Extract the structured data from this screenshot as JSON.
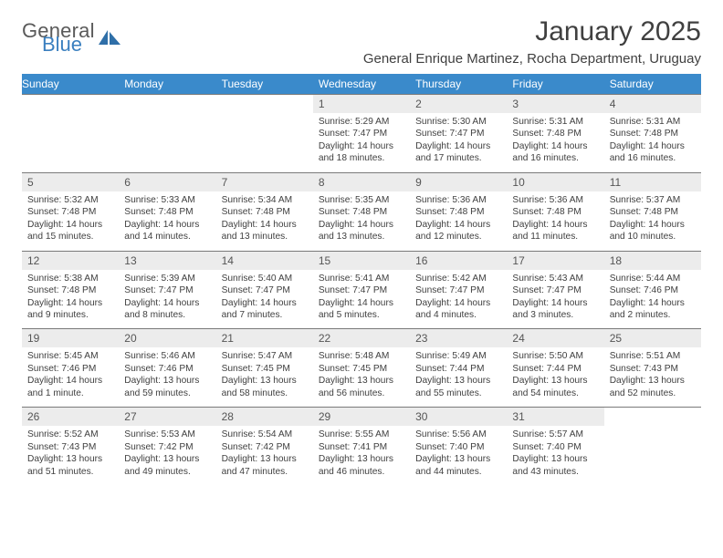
{
  "brand": {
    "general": "General",
    "blue": "Blue"
  },
  "title": "January 2025",
  "location": "General Enrique Martinez, Rocha Department, Uruguay",
  "colors": {
    "header_bg": "#3a8acb",
    "header_fg": "#ffffff",
    "daynum_bg": "#ececec",
    "rule": "#7a7a7a",
    "text": "#404040",
    "brand_blue": "#3a7fbf"
  },
  "day_labels": [
    "Sunday",
    "Monday",
    "Tuesday",
    "Wednesday",
    "Thursday",
    "Friday",
    "Saturday"
  ],
  "weeks": [
    [
      null,
      null,
      null,
      {
        "n": "1",
        "sr": "5:29 AM",
        "ss": "7:47 PM",
        "dl": "14 hours and 18 minutes."
      },
      {
        "n": "2",
        "sr": "5:30 AM",
        "ss": "7:47 PM",
        "dl": "14 hours and 17 minutes."
      },
      {
        "n": "3",
        "sr": "5:31 AM",
        "ss": "7:48 PM",
        "dl": "14 hours and 16 minutes."
      },
      {
        "n": "4",
        "sr": "5:31 AM",
        "ss": "7:48 PM",
        "dl": "14 hours and 16 minutes."
      }
    ],
    [
      {
        "n": "5",
        "sr": "5:32 AM",
        "ss": "7:48 PM",
        "dl": "14 hours and 15 minutes."
      },
      {
        "n": "6",
        "sr": "5:33 AM",
        "ss": "7:48 PM",
        "dl": "14 hours and 14 minutes."
      },
      {
        "n": "7",
        "sr": "5:34 AM",
        "ss": "7:48 PM",
        "dl": "14 hours and 13 minutes."
      },
      {
        "n": "8",
        "sr": "5:35 AM",
        "ss": "7:48 PM",
        "dl": "14 hours and 13 minutes."
      },
      {
        "n": "9",
        "sr": "5:36 AM",
        "ss": "7:48 PM",
        "dl": "14 hours and 12 minutes."
      },
      {
        "n": "10",
        "sr": "5:36 AM",
        "ss": "7:48 PM",
        "dl": "14 hours and 11 minutes."
      },
      {
        "n": "11",
        "sr": "5:37 AM",
        "ss": "7:48 PM",
        "dl": "14 hours and 10 minutes."
      }
    ],
    [
      {
        "n": "12",
        "sr": "5:38 AM",
        "ss": "7:48 PM",
        "dl": "14 hours and 9 minutes."
      },
      {
        "n": "13",
        "sr": "5:39 AM",
        "ss": "7:47 PM",
        "dl": "14 hours and 8 minutes."
      },
      {
        "n": "14",
        "sr": "5:40 AM",
        "ss": "7:47 PM",
        "dl": "14 hours and 7 minutes."
      },
      {
        "n": "15",
        "sr": "5:41 AM",
        "ss": "7:47 PM",
        "dl": "14 hours and 5 minutes."
      },
      {
        "n": "16",
        "sr": "5:42 AM",
        "ss": "7:47 PM",
        "dl": "14 hours and 4 minutes."
      },
      {
        "n": "17",
        "sr": "5:43 AM",
        "ss": "7:47 PM",
        "dl": "14 hours and 3 minutes."
      },
      {
        "n": "18",
        "sr": "5:44 AM",
        "ss": "7:46 PM",
        "dl": "14 hours and 2 minutes."
      }
    ],
    [
      {
        "n": "19",
        "sr": "5:45 AM",
        "ss": "7:46 PM",
        "dl": "14 hours and 1 minute."
      },
      {
        "n": "20",
        "sr": "5:46 AM",
        "ss": "7:46 PM",
        "dl": "13 hours and 59 minutes."
      },
      {
        "n": "21",
        "sr": "5:47 AM",
        "ss": "7:45 PM",
        "dl": "13 hours and 58 minutes."
      },
      {
        "n": "22",
        "sr": "5:48 AM",
        "ss": "7:45 PM",
        "dl": "13 hours and 56 minutes."
      },
      {
        "n": "23",
        "sr": "5:49 AM",
        "ss": "7:44 PM",
        "dl": "13 hours and 55 minutes."
      },
      {
        "n": "24",
        "sr": "5:50 AM",
        "ss": "7:44 PM",
        "dl": "13 hours and 54 minutes."
      },
      {
        "n": "25",
        "sr": "5:51 AM",
        "ss": "7:43 PM",
        "dl": "13 hours and 52 minutes."
      }
    ],
    [
      {
        "n": "26",
        "sr": "5:52 AM",
        "ss": "7:43 PM",
        "dl": "13 hours and 51 minutes."
      },
      {
        "n": "27",
        "sr": "5:53 AM",
        "ss": "7:42 PM",
        "dl": "13 hours and 49 minutes."
      },
      {
        "n": "28",
        "sr": "5:54 AM",
        "ss": "7:42 PM",
        "dl": "13 hours and 47 minutes."
      },
      {
        "n": "29",
        "sr": "5:55 AM",
        "ss": "7:41 PM",
        "dl": "13 hours and 46 minutes."
      },
      {
        "n": "30",
        "sr": "5:56 AM",
        "ss": "7:40 PM",
        "dl": "13 hours and 44 minutes."
      },
      {
        "n": "31",
        "sr": "5:57 AM",
        "ss": "7:40 PM",
        "dl": "13 hours and 43 minutes."
      },
      null
    ]
  ],
  "labels": {
    "sunrise": "Sunrise:",
    "sunset": "Sunset:",
    "daylight": "Daylight:"
  }
}
